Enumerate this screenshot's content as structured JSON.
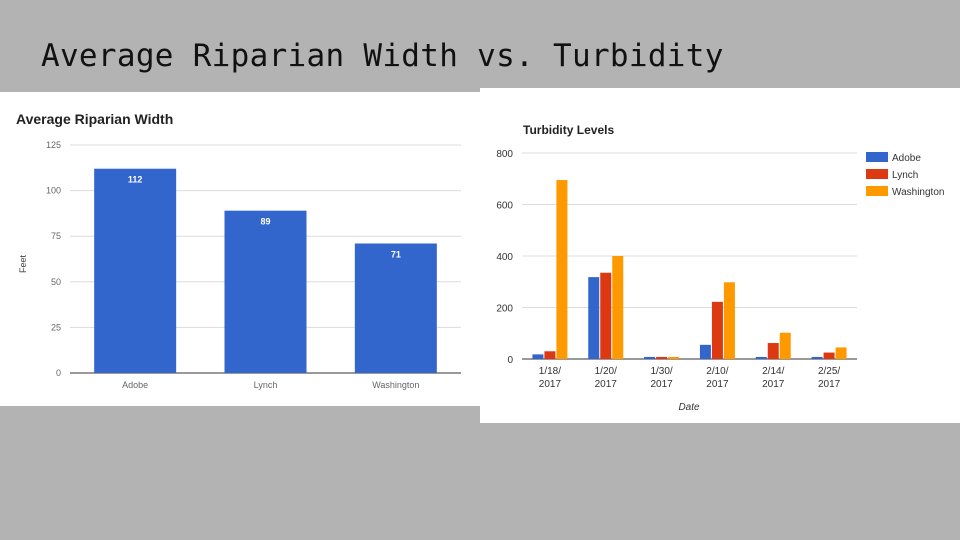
{
  "slide": {
    "title": "Average Riparian Width vs. Turbidity"
  },
  "chart_data": [
    {
      "type": "bar",
      "title": "Average Riparian Width",
      "xlabel": "",
      "ylabel": "Feet",
      "categories": [
        "Adobe",
        "Lynch",
        "Washington"
      ],
      "values": [
        112,
        89,
        71
      ],
      "data_labels": [
        "112",
        "89",
        "71"
      ],
      "ylim": [
        0,
        125
      ],
      "yticks": [
        0,
        25,
        50,
        75,
        100,
        125
      ],
      "grid": true,
      "legend": "none",
      "colors": {
        "bar": "#3366cc"
      }
    },
    {
      "type": "bar",
      "title": "Turbidity Levels",
      "xlabel": "Date",
      "ylabel": "",
      "categories": [
        [
          "1/18/",
          "2017"
        ],
        [
          "1/20/",
          "2017"
        ],
        [
          "1/30/",
          "2017"
        ],
        [
          "2/10/",
          "2017"
        ],
        [
          "2/14/",
          "2017"
        ],
        [
          "2/25/",
          "2017"
        ]
      ],
      "series": [
        {
          "name": "Adobe",
          "color": "#3366cc",
          "values": [
            18,
            318,
            8,
            55,
            8,
            8
          ]
        },
        {
          "name": "Lynch",
          "color": "#dc3912",
          "values": [
            30,
            335,
            8,
            222,
            62,
            25
          ]
        },
        {
          "name": "Washington",
          "color": "#ff9900",
          "values": [
            695,
            400,
            8,
            298,
            102,
            45
          ]
        }
      ],
      "ylim": [
        0,
        800
      ],
      "yticks": [
        0,
        200,
        400,
        600,
        800
      ],
      "grid": true,
      "legend": "right"
    }
  ]
}
